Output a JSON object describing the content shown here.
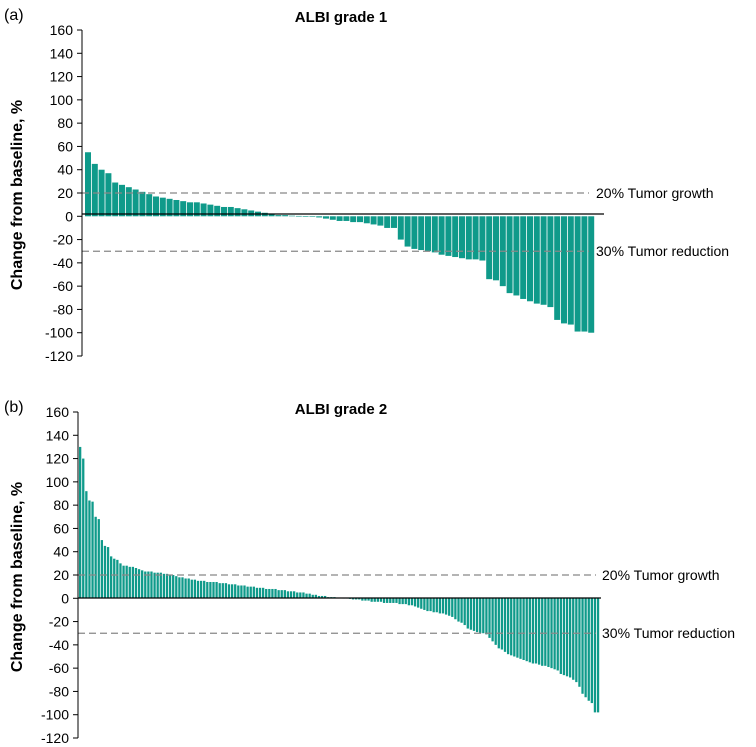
{
  "chart_data": [
    {
      "type": "bar",
      "panel_label": "(a)",
      "title": "ALBI grade 1",
      "xlabel": "",
      "ylabel": "Change  from baseline, %",
      "ylim": [
        -120,
        160
      ],
      "yticks": [
        160,
        140,
        120,
        100,
        80,
        60,
        40,
        20,
        0,
        -20,
        -40,
        -60,
        -80,
        -100,
        -120
      ],
      "values": [
        55,
        45,
        40,
        37,
        29,
        27,
        25,
        23,
        21,
        19,
        17,
        16,
        15,
        14,
        13,
        12,
        12,
        11,
        10,
        9,
        8,
        8,
        7,
        6,
        5,
        4,
        3,
        2,
        1,
        1,
        0.5,
        0.3,
        0.2,
        -0.5,
        -1,
        -2,
        -3,
        -4,
        -4,
        -5,
        -5,
        -6,
        -7,
        -8,
        -10,
        -10,
        -20,
        -26,
        -28,
        -29,
        -30,
        -31,
        -33,
        -34,
        -35,
        -36,
        -37,
        -37,
        -38,
        -54,
        -55,
        -60,
        -66,
        -68,
        -71,
        -73,
        -75,
        -76,
        -78,
        -89,
        -92,
        -93,
        -99,
        -99,
        -100
      ],
      "reference_lines": [
        {
          "value": 20,
          "label": "20% Tumor growth"
        },
        {
          "value": -30,
          "label": "30% Tumor reduction"
        }
      ],
      "bar_color": "#0f9a8a"
    },
    {
      "type": "bar",
      "panel_label": "(b)",
      "title": "ALBI grade 2",
      "xlabel": "",
      "ylabel": "Change  from baseline, %",
      "ylim": [
        -120,
        160
      ],
      "yticks": [
        160,
        140,
        120,
        100,
        80,
        60,
        40,
        20,
        0,
        -20,
        -40,
        -60,
        -80,
        -100,
        -120
      ],
      "values": [
        130,
        120,
        92,
        84,
        83,
        70,
        68,
        50,
        45,
        44,
        36,
        34,
        33,
        30,
        28,
        28,
        27,
        27,
        26,
        25,
        24,
        23,
        23,
        23,
        22,
        22,
        22,
        21,
        21,
        20,
        20,
        19,
        18,
        18,
        17,
        17,
        16,
        16,
        15,
        15,
        15,
        14,
        14,
        14,
        14,
        13,
        13,
        13,
        12,
        12,
        12,
        11,
        11,
        11,
        10,
        10,
        10,
        9,
        9,
        9,
        8,
        8,
        8,
        8,
        7,
        7,
        7,
        6,
        6,
        6,
        5,
        5,
        5,
        4,
        4,
        3,
        3,
        2,
        2,
        2,
        1,
        1,
        1,
        0.5,
        0.5,
        0.3,
        0.3,
        -0.5,
        -1,
        -1,
        -1,
        -2,
        -2,
        -2,
        -3,
        -3,
        -3,
        -3,
        -4,
        -4,
        -4,
        -4,
        -4,
        -5,
        -5,
        -5,
        -6,
        -6,
        -7,
        -8,
        -9,
        -10,
        -11,
        -11,
        -12,
        -12,
        -13,
        -13,
        -14,
        -15,
        -16,
        -18,
        -20,
        -21,
        -23,
        -26,
        -27,
        -28,
        -29,
        -30,
        -30,
        -31,
        -34,
        -37,
        -40,
        -43,
        -44,
        -46,
        -48,
        -49,
        -50,
        -51,
        -52,
        -53,
        -54,
        -55,
        -56,
        -56,
        -57,
        -58,
        -58,
        -59,
        -60,
        -61,
        -62,
        -65,
        -66,
        -67,
        -68,
        -70,
        -72,
        -76,
        -82,
        -85,
        -88,
        -90,
        -98,
        -98
      ],
      "reference_lines": [
        {
          "value": 20,
          "label": "20% Tumor growth"
        },
        {
          "value": -30,
          "label": "30% Tumor reduction"
        }
      ],
      "bar_color": "#0f9a8a"
    }
  ]
}
